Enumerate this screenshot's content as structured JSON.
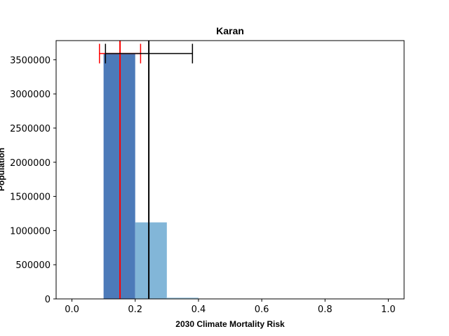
{
  "chart_data": {
    "type": "bar",
    "title": "Karan",
    "xlabel": "2030 Climate Mortality Risk",
    "ylabel": "Population",
    "xlim": [
      -0.05,
      1.05
    ],
    "ylim": [
      0,
      3780000
    ],
    "xticks": [
      0.0,
      0.2,
      0.4,
      0.6,
      0.8,
      1.0
    ],
    "xtick_labels": [
      "0.0",
      "0.2",
      "0.4",
      "0.6",
      "0.8",
      "1.0"
    ],
    "yticks": [
      0,
      500000,
      1000000,
      1500000,
      2000000,
      2500000,
      3000000,
      3500000
    ],
    "ytick_labels": [
      "0",
      "500000",
      "1000000",
      "1500000",
      "2000000",
      "2500000",
      "3000000",
      "3500000"
    ],
    "bins": [
      {
        "x0": 0.1,
        "x1": 0.2,
        "value": 3590000,
        "color": "#4c7ab9"
      },
      {
        "x0": 0.2,
        "x1": 0.3,
        "value": 1120000,
        "color": "#82b6d8"
      },
      {
        "x0": 0.3,
        "x1": 0.4,
        "value": 20000,
        "color": "#a9cfe6"
      }
    ],
    "markers": [
      {
        "name": "red",
        "color": "#ff0000",
        "center": 0.152,
        "lower": 0.087,
        "upper": 0.217,
        "bar_y": 3590000
      },
      {
        "name": "black",
        "color": "#000000",
        "center": 0.243,
        "lower": 0.106,
        "upper": 0.381,
        "bar_y": 3590000
      }
    ],
    "grid": false,
    "legend": "none"
  }
}
